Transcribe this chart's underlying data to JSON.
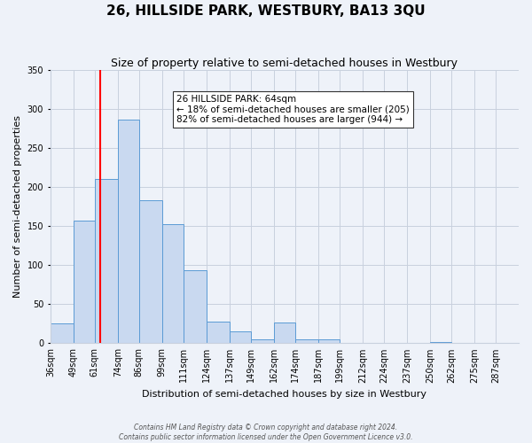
{
  "title": "26, HILLSIDE PARK, WESTBURY, BA13 3QU",
  "subtitle": "Size of property relative to semi-detached houses in Westbury",
  "xlabel": "Distribution of semi-detached houses by size in Westbury",
  "ylabel": "Number of semi-detached properties",
  "footer_line1": "Contains HM Land Registry data © Crown copyright and database right 2024.",
  "footer_line2": "Contains public sector information licensed under the Open Government Licence v3.0.",
  "annotation_line1": "26 HILLSIDE PARK: 64sqm",
  "annotation_line2": "← 18% of semi-detached houses are smaller (205)",
  "annotation_line3": "82% of semi-detached houses are larger (944) →",
  "bar_color": "#c9d9f0",
  "bar_edge_color": "#5b9bd5",
  "red_line_x": 64,
  "ylim": [
    0,
    350
  ],
  "bin_edges": [
    36,
    49,
    61,
    74,
    86,
    99,
    111,
    124,
    137,
    149,
    162,
    174,
    187,
    199,
    212,
    224,
    237,
    250,
    262,
    275,
    287,
    300
  ],
  "bin_heights": [
    25,
    157,
    210,
    287,
    183,
    152,
    93,
    28,
    15,
    5,
    27,
    5,
    5,
    0,
    0,
    0,
    0,
    2,
    0,
    0,
    0
  ],
  "xtick_labels": [
    "36sqm",
    "49sqm",
    "61sqm",
    "74sqm",
    "86sqm",
    "99sqm",
    "111sqm",
    "124sqm",
    "137sqm",
    "149sqm",
    "162sqm",
    "174sqm",
    "187sqm",
    "199sqm",
    "212sqm",
    "224sqm",
    "237sqm",
    "250sqm",
    "262sqm",
    "275sqm",
    "287sqm"
  ],
  "background_color": "#eef2f9",
  "grid_color": "#c8d0de",
  "title_fontsize": 11,
  "subtitle_fontsize": 9,
  "xlabel_fontsize": 8,
  "ylabel_fontsize": 8,
  "tick_fontsize": 7,
  "annotation_fontsize": 7.5,
  "footer_fontsize": 5.5
}
